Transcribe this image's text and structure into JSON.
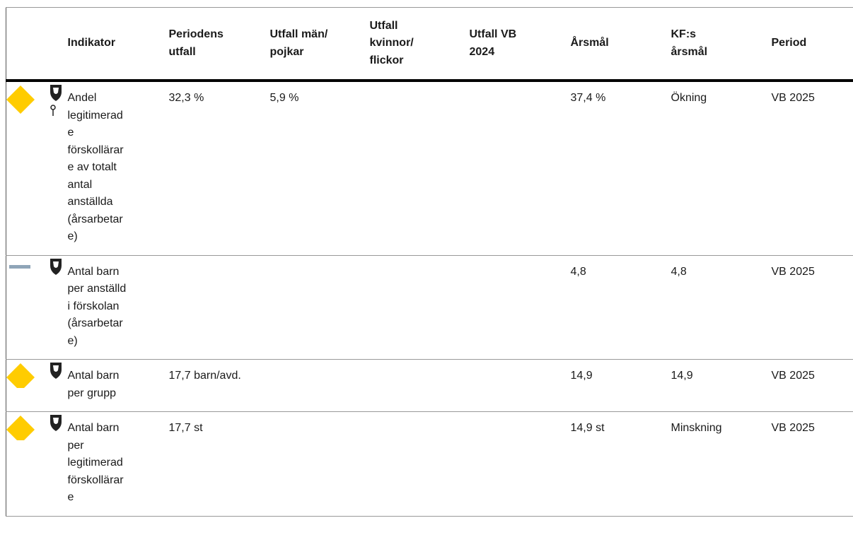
{
  "table": {
    "columns": [
      "Indikator",
      "Periodens utfall",
      "Utfall män/ pojkar",
      "Utfall kvinnor/ flickor",
      "Utfall VB 2024",
      "Årsmål",
      "KF:s årsmål",
      "Period"
    ],
    "rows": [
      [
        "Andel legitimerade förskollärare av totalt antal anställda (årsarbetare)",
        "32,3 %",
        "5,9 %",
        null,
        null,
        "37,4 %",
        "Ökning",
        "VB 2025"
      ],
      [
        "Antal barn per anställd i förskolan (årsarbetare)",
        null,
        null,
        null,
        null,
        "4,8",
        "4,8",
        "VB 2025"
      ],
      [
        "Antal barn per grupp",
        "17,7 barn/avd.",
        null,
        null,
        null,
        "14,9",
        "14,9",
        "VB 2025"
      ],
      [
        "Antal barn per legitimerad förskollärare",
        "17,7 st",
        null,
        null,
        null,
        "14,9 st",
        "Minskning",
        "VB 2025"
      ]
    ]
  }
}
